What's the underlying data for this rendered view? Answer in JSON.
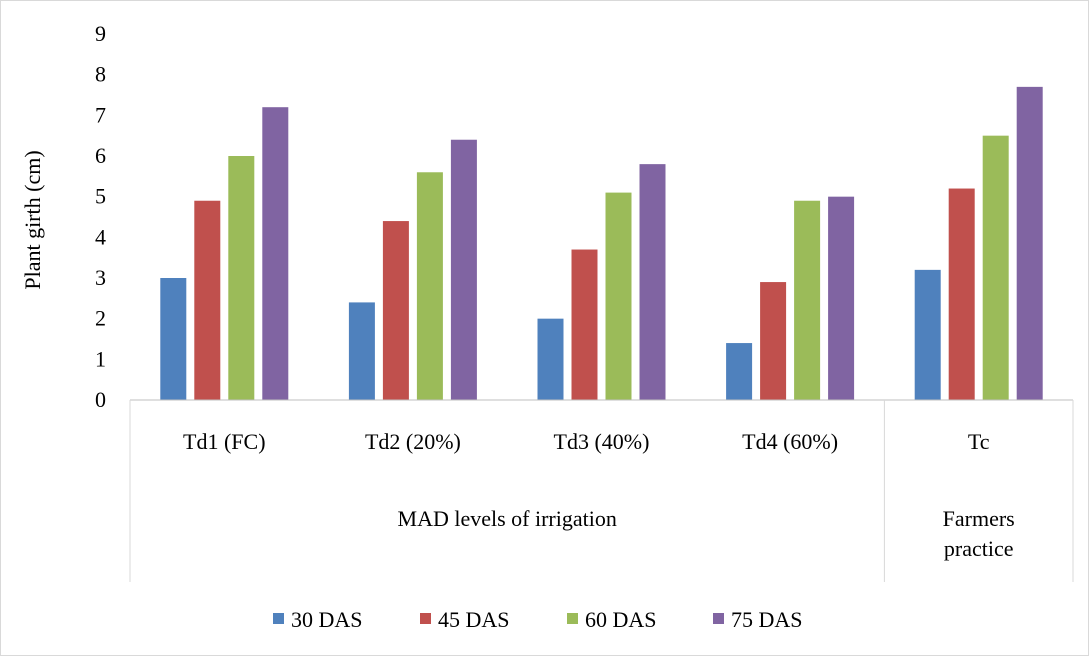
{
  "chart_data": {
    "type": "bar",
    "ylabel": "Plant girth (cm)",
    "ylim": [
      0,
      9
    ],
    "yticks": [
      "0",
      "1",
      "2",
      "3",
      "4",
      "5",
      "6",
      "7",
      "8",
      "9"
    ],
    "categories": [
      "Td1 (FC)",
      "Td2 (20%)",
      "Td3 (40%)",
      "Td4 (60%)",
      "Tc"
    ],
    "groups": [
      {
        "label": "MAD levels of irrigation",
        "span": 4
      },
      {
        "label": "Farmers practice",
        "span": 1
      }
    ],
    "series": [
      {
        "name": "30 DAS",
        "color": "#4f81bd",
        "values": [
          3.0,
          2.4,
          2.0,
          1.4,
          3.2
        ]
      },
      {
        "name": "45 DAS",
        "color": "#c0504d",
        "values": [
          4.9,
          4.4,
          3.7,
          2.9,
          5.2
        ]
      },
      {
        "name": "60 DAS",
        "color": "#9bbb59",
        "values": [
          6.0,
          5.6,
          5.1,
          4.9,
          6.5
        ]
      },
      {
        "name": "75 DAS",
        "color": "#8064a2",
        "values": [
          7.2,
          6.4,
          5.8,
          5.0,
          7.7
        ]
      }
    ],
    "grid": false,
    "legend": "bottom"
  }
}
